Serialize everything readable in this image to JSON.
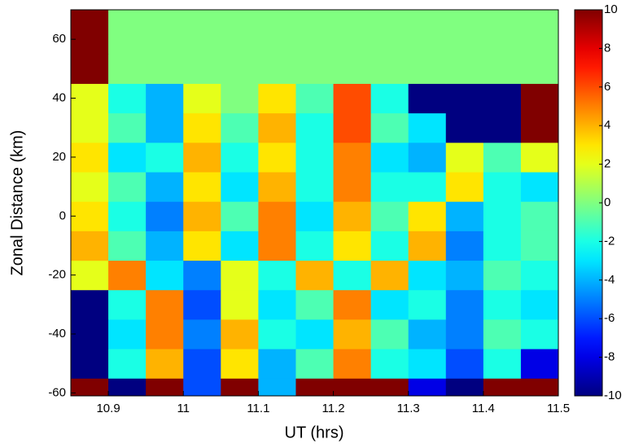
{
  "chart_data": {
    "type": "heatmap",
    "x_label": "UT (hrs)",
    "y_label": "Zonal Distance (km)",
    "colormap": "jet",
    "xbins": [
      10.85,
      10.9,
      10.95,
      11,
      11.05,
      11.1,
      11.15,
      11.2,
      11.25,
      11.3,
      11.35,
      11.4,
      11.45,
      11.5
    ],
    "ybins": [
      -61,
      -55,
      -45,
      -35,
      -25,
      -15,
      -5,
      5,
      15,
      25,
      35,
      45,
      55,
      70
    ],
    "z": [
      [
        10,
        -10,
        10,
        -6,
        10,
        -4,
        10,
        10,
        10,
        -8,
        -10,
        10,
        10
      ],
      [
        -10,
        -2,
        4,
        -6,
        3,
        -4,
        -1,
        5,
        -2,
        -3,
        -6,
        -2,
        -8
      ],
      [
        -10,
        -3,
        5,
        -5,
        4,
        -2,
        -3,
        4,
        -1,
        -4,
        -5,
        -1,
        -2
      ],
      [
        -10,
        -2,
        5,
        -6,
        2,
        -3,
        -1,
        5,
        -3,
        -2,
        -5,
        -2,
        -3
      ],
      [
        2,
        5,
        -3,
        -5,
        2,
        -2,
        4,
        -2,
        4,
        -3,
        -4,
        -1,
        -2
      ],
      [
        4,
        -1,
        -4,
        3,
        -3,
        5,
        -2,
        3,
        -2,
        4,
        -5,
        -2,
        -1
      ],
      [
        3,
        -2,
        -5,
        4,
        -1,
        5,
        -3,
        4,
        -1,
        3,
        -4,
        -2,
        -1
      ],
      [
        2,
        -1,
        -4,
        3,
        -3,
        4,
        -2,
        5,
        -2,
        -2,
        3,
        -2,
        -3
      ],
      [
        3,
        -3,
        -2,
        4,
        -2,
        3,
        -2,
        5,
        -3,
        -4,
        2,
        -1,
        2
      ],
      [
        2,
        -1,
        -4,
        3,
        -1,
        4,
        -2,
        6,
        -1,
        -3,
        -10,
        -10,
        10
      ],
      [
        2,
        -2,
        -4,
        2,
        0,
        3,
        -1,
        6,
        -2,
        -10,
        -10,
        -10,
        10
      ],
      [
        10,
        0,
        0,
        0,
        0,
        0,
        0,
        0,
        0,
        0,
        0,
        0,
        0
      ],
      [
        10,
        0,
        0,
        0,
        0,
        0,
        0,
        0,
        0,
        0,
        0,
        0,
        0
      ]
    ],
    "xlim": [
      10.85,
      11.5
    ],
    "xticks": [
      10.9,
      11,
      11.1,
      11.2,
      11.3,
      11.4,
      11.5
    ],
    "ylim": [
      -61,
      70
    ],
    "yticks": [
      -60,
      -40,
      -20,
      0,
      20,
      40,
      60
    ],
    "clim": [
      -10,
      10
    ],
    "cticks": [
      -10,
      -8,
      -6,
      -4,
      -2,
      0,
      2,
      4,
      6,
      8,
      10
    ]
  }
}
